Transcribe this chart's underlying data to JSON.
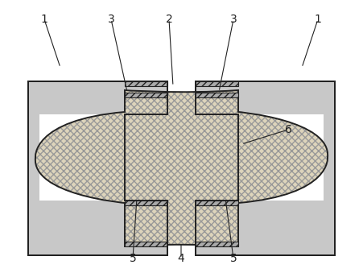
{
  "figsize": [
    4.51,
    3.39
  ],
  "dpi": 100,
  "gray": "#c8c8c8",
  "hatch_fc": "#ddd4bb",
  "line_color": "#222222",
  "lw": 1.4
}
